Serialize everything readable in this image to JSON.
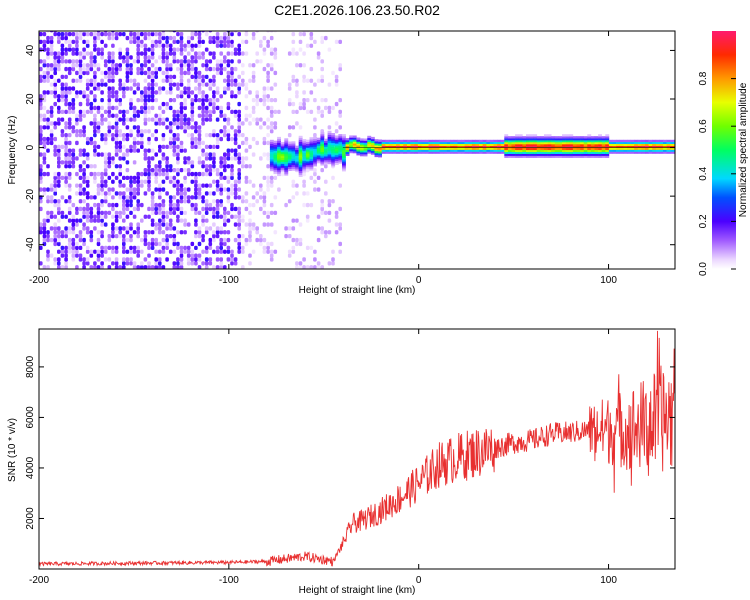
{
  "chart_data": [
    {
      "type": "heatmap",
      "title": "C2E1.2026.106.23.50.R02",
      "xlabel": "Height of straight line (km)",
      "ylabel": "Frequency (Hz)",
      "xlim": [
        -200,
        135
      ],
      "ylim": [
        -50,
        48
      ],
      "xticks": [
        -200,
        -100,
        0,
        100
      ],
      "xtick_labels": [
        "-200",
        "-100",
        "0",
        "100"
      ],
      "yticks": [
        -40,
        -20,
        0,
        20,
        40
      ],
      "ytick_labels": [
        "-40",
        "-20",
        "0",
        "20",
        "40"
      ],
      "colorbar": {
        "label": "Normalized spectral amplitude",
        "range": [
          0,
          1
        ],
        "ticks": [
          0,
          0.2,
          0.4,
          0.6,
          0.8
        ],
        "tick_labels": [
          "0.0",
          "0.2",
          "0.4",
          "0.6",
          "0.8"
        ]
      },
      "features": [
        {
          "description": "broadband noise",
          "x_range": [
            -200,
            -42
          ],
          "freq_range": [
            -50,
            48
          ],
          "amplitude": 0.15
        },
        {
          "description": "carrier onset, wandering",
          "x_range": [
            -80,
            -40
          ],
          "freq_center": -4,
          "amplitude": 0.4
        },
        {
          "description": "stable carrier line",
          "x_range": [
            -40,
            135
          ],
          "freq_center": 0,
          "amplitude": 0.95
        }
      ]
    },
    {
      "type": "line",
      "xlabel": "Height of straight line (km)",
      "ylabel": "SNR (10 * v/v)",
      "xlim": [
        -200,
        135
      ],
      "ylim": [
        0,
        9500
      ],
      "xticks": [
        -200,
        -100,
        0,
        100
      ],
      "xtick_labels": [
        "-200",
        "-100",
        "0",
        "100"
      ],
      "yticks": [
        2000,
        4000,
        6000,
        8000
      ],
      "ytick_labels": [
        "2000",
        "4000",
        "6000",
        "8000"
      ],
      "series": [
        {
          "name": "SNR",
          "color": "#e83030",
          "x": [
            -200,
            -150,
            -100,
            -80,
            -60,
            -45,
            -40,
            -35,
            -30,
            -20,
            -10,
            0,
            10,
            20,
            30,
            40,
            50,
            60,
            70,
            80,
            90,
            100,
            110,
            120,
            130,
            135
          ],
          "values": [
            200,
            230,
            260,
            300,
            500,
            300,
            1000,
            1800,
            1900,
            2300,
            2800,
            3400,
            4100,
            4400,
            4600,
            4800,
            5000,
            5100,
            5350,
            5400,
            5500,
            5500,
            5550,
            5700,
            6000,
            6100
          ]
        }
      ]
    }
  ]
}
